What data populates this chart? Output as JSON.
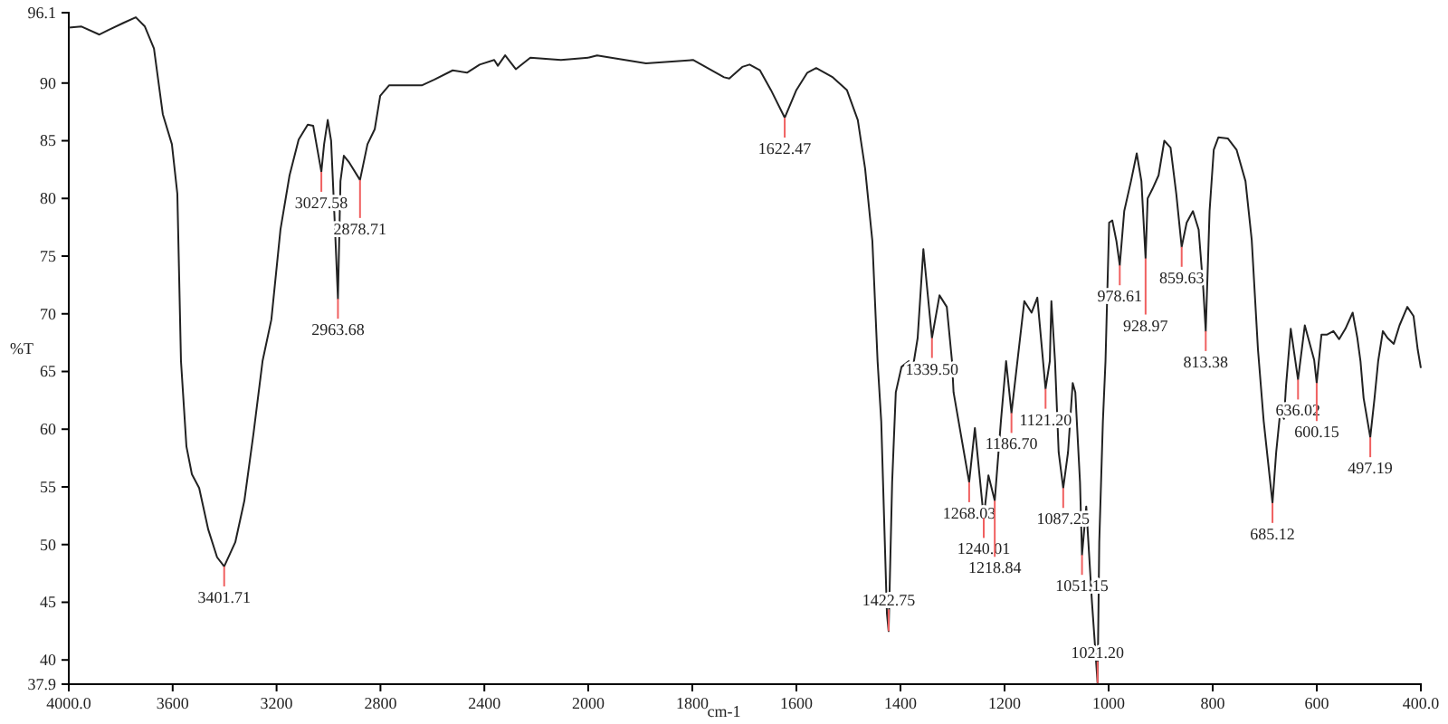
{
  "chart_data": [
    {
      "type": "line",
      "ylabel": "%T",
      "xlim": [
        4000,
        2000
      ],
      "ylim": [
        37.9,
        96.1
      ],
      "xticks": [
        {
          "value": 4000,
          "label": "4000.0"
        },
        3600,
        3200,
        2800,
        2400
      ],
      "yticks": [
        37.9,
        40,
        45,
        50,
        55,
        60,
        65,
        70,
        75,
        80,
        85,
        90,
        96.1
      ],
      "marker": "none",
      "line_style": "solid",
      "series": [
        {
          "color": "#222222",
          "x": [
            4000,
            3951,
            3882,
            3847,
            3791,
            3742,
            3707,
            3672,
            3638,
            3603,
            3582,
            3568,
            3547,
            3526,
            3498,
            3463,
            3429,
            3401.71,
            3359,
            3324,
            3289,
            3254,
            3220,
            3185,
            3150,
            3115,
            3080,
            3059,
            3027.58,
            3017,
            3003,
            2990,
            2976,
            2963.68,
            2954,
            2941,
            2920,
            2878.71,
            2850,
            2822,
            2801,
            2767,
            2641,
            2592,
            2522,
            2467,
            2418,
            2362,
            2348,
            2320,
            2279,
            2223,
            2105,
            2000
          ],
          "values": [
            94.8,
            94.9,
            94.2,
            94.6,
            95.2,
            95.7,
            94.9,
            93.0,
            87.3,
            84.7,
            80.4,
            65.9,
            58.5,
            56.1,
            54.9,
            51.3,
            48.9,
            48.1,
            50.2,
            53.8,
            59.6,
            65.9,
            69.5,
            77.3,
            82.0,
            85.1,
            86.4,
            86.3,
            82.3,
            84.7,
            86.8,
            85.0,
            77.9,
            71.3,
            81.5,
            83.7,
            83.1,
            81.6,
            84.7,
            86.0,
            88.9,
            89.8,
            89.8,
            90.3,
            91.1,
            90.9,
            91.6,
            92.0,
            91.5,
            92.4,
            91.2,
            92.2,
            92.0,
            92.2
          ]
        }
      ],
      "annotations": [
        {
          "text": "3401.71",
          "x": 3401.71,
          "y": 48.1
        },
        {
          "text": "3027.58",
          "x": 3027.58,
          "y": 82.3
        },
        {
          "text": "2963.68",
          "x": 2963.68,
          "y": 71.3
        },
        {
          "text": "2878.71",
          "x": 2878.71,
          "y": 81.6
        }
      ]
    },
    {
      "type": "line",
      "xlabel": "cm-1",
      "xlim": [
        2000,
        400
      ],
      "ylim": [
        37.9,
        96.1
      ],
      "xticks": [
        2000,
        1800,
        1600,
        1400,
        1200,
        1000,
        800,
        600,
        {
          "value": 400,
          "label": "400.0"
        }
      ],
      "tick_labels": "x",
      "marker": "none",
      "line_style": "solid",
      "series": [
        {
          "color": "#222222",
          "x": [
            2000,
            1983,
            1889,
            1798,
            1739,
            1729,
            1704,
            1690,
            1670,
            1649,
            1622.47,
            1600,
            1579,
            1562,
            1530,
            1503,
            1482,
            1468,
            1454,
            1444,
            1437,
            1426,
            1422.75,
            1416,
            1409,
            1398,
            1384,
            1377,
            1367,
            1356,
            1339.5,
            1325,
            1311,
            1301,
            1298,
            1268.03,
            1257,
            1240.01,
            1231,
            1218.84,
            1207,
            1197,
            1186.7,
            1162,
            1148,
            1137,
            1121.2,
            1113,
            1110,
            1103,
            1096,
            1087.25,
            1078,
            1069,
            1064,
            1055,
            1051.15,
            1043,
            1032,
            1021.2,
            1018,
            1011,
            1006,
            999,
            993,
            985,
            978.61,
            970,
            957,
            946,
            937,
            928.97,
            925,
            916,
            904,
            893,
            881,
            870,
            859.63,
            850,
            838,
            827,
            818,
            813.38,
            806,
            798,
            789,
            771,
            754,
            737,
            725,
            713,
            702,
            685.12,
            678,
            670,
            663,
            659,
            650,
            636.02,
            623,
            605,
            600.15,
            591,
            580,
            568,
            557,
            545,
            531,
            522,
            516,
            510,
            497.19,
            489,
            482,
            473,
            464,
            452,
            441,
            426,
            414,
            406,
            400
          ],
          "values": [
            92.2,
            92.4,
            91.7,
            92.0,
            90.5,
            90.4,
            91.4,
            91.6,
            91.1,
            89.4,
            87.0,
            89.4,
            90.9,
            91.3,
            90.5,
            89.4,
            86.8,
            82.6,
            76.3,
            65.9,
            60.7,
            44.0,
            42.5,
            55.4,
            63.2,
            65.4,
            65.9,
            65.1,
            67.9,
            75.6,
            67.9,
            71.6,
            70.6,
            65.9,
            63.2,
            55.4,
            60.1,
            52.3,
            56.0,
            53.8,
            60.7,
            65.9,
            61.4,
            71.1,
            70.1,
            71.4,
            63.5,
            65.9,
            71.1,
            65.9,
            58.0,
            54.9,
            58.0,
            64.0,
            63.2,
            55.4,
            49.1,
            53.3,
            45.0,
            38.0,
            50.2,
            60.7,
            65.9,
            77.9,
            78.1,
            76.3,
            74.2,
            78.9,
            81.5,
            83.9,
            81.5,
            74.8,
            80.0,
            80.8,
            82.0,
            85.0,
            84.4,
            80.4,
            75.8,
            77.9,
            78.9,
            77.3,
            72.1,
            68.5,
            78.9,
            84.2,
            85.3,
            85.2,
            84.2,
            81.5,
            76.4,
            66.9,
            60.7,
            53.6,
            58.0,
            61.6,
            60.9,
            63.8,
            68.7,
            64.3,
            69.0,
            66.0,
            64.0,
            68.2,
            68.2,
            68.5,
            67.8,
            68.7,
            70.1,
            67.9,
            65.9,
            62.7,
            59.3,
            62.7,
            65.9,
            68.5,
            67.9,
            67.4,
            69.0,
            70.6,
            69.8,
            66.9,
            65.3
          ]
        }
      ],
      "annotations": [
        {
          "text": "1622.47",
          "x": 1622.47,
          "y": 87.0
        },
        {
          "text": "1422.75",
          "x": 1422.75,
          "y": 42.5
        },
        {
          "text": "1339.50",
          "x": 1339.5,
          "y": 67.9
        },
        {
          "text": "1268.03",
          "x": 1268.03,
          "y": 55.4
        },
        {
          "text": "1240.01",
          "x": 1240.01,
          "y": 52.3
        },
        {
          "text": "1218.84",
          "x": 1218.84,
          "y": 53.8
        },
        {
          "text": "1186.70",
          "x": 1186.7,
          "y": 61.4
        },
        {
          "text": "1121.20",
          "x": 1121.2,
          "y": 63.5
        },
        {
          "text": "1087.25",
          "x": 1087.25,
          "y": 54.9
        },
        {
          "text": "1051.15",
          "x": 1051.15,
          "y": 49.1
        },
        {
          "text": "1021.20",
          "x": 1021.2,
          "y": 38.0
        },
        {
          "text": "978.61",
          "x": 978.61,
          "y": 74.2
        },
        {
          "text": "928.97",
          "x": 928.97,
          "y": 74.8
        },
        {
          "text": "859.63",
          "x": 859.63,
          "y": 75.8
        },
        {
          "text": "813.38",
          "x": 813.38,
          "y": 68.5
        },
        {
          "text": "685.12",
          "x": 685.12,
          "y": 53.6
        },
        {
          "text": "636.02",
          "x": 636.02,
          "y": 64.3
        },
        {
          "text": "600.15",
          "x": 600.15,
          "y": 64.0
        },
        {
          "text": "497.19",
          "x": 497.19,
          "y": 59.3
        }
      ]
    }
  ]
}
